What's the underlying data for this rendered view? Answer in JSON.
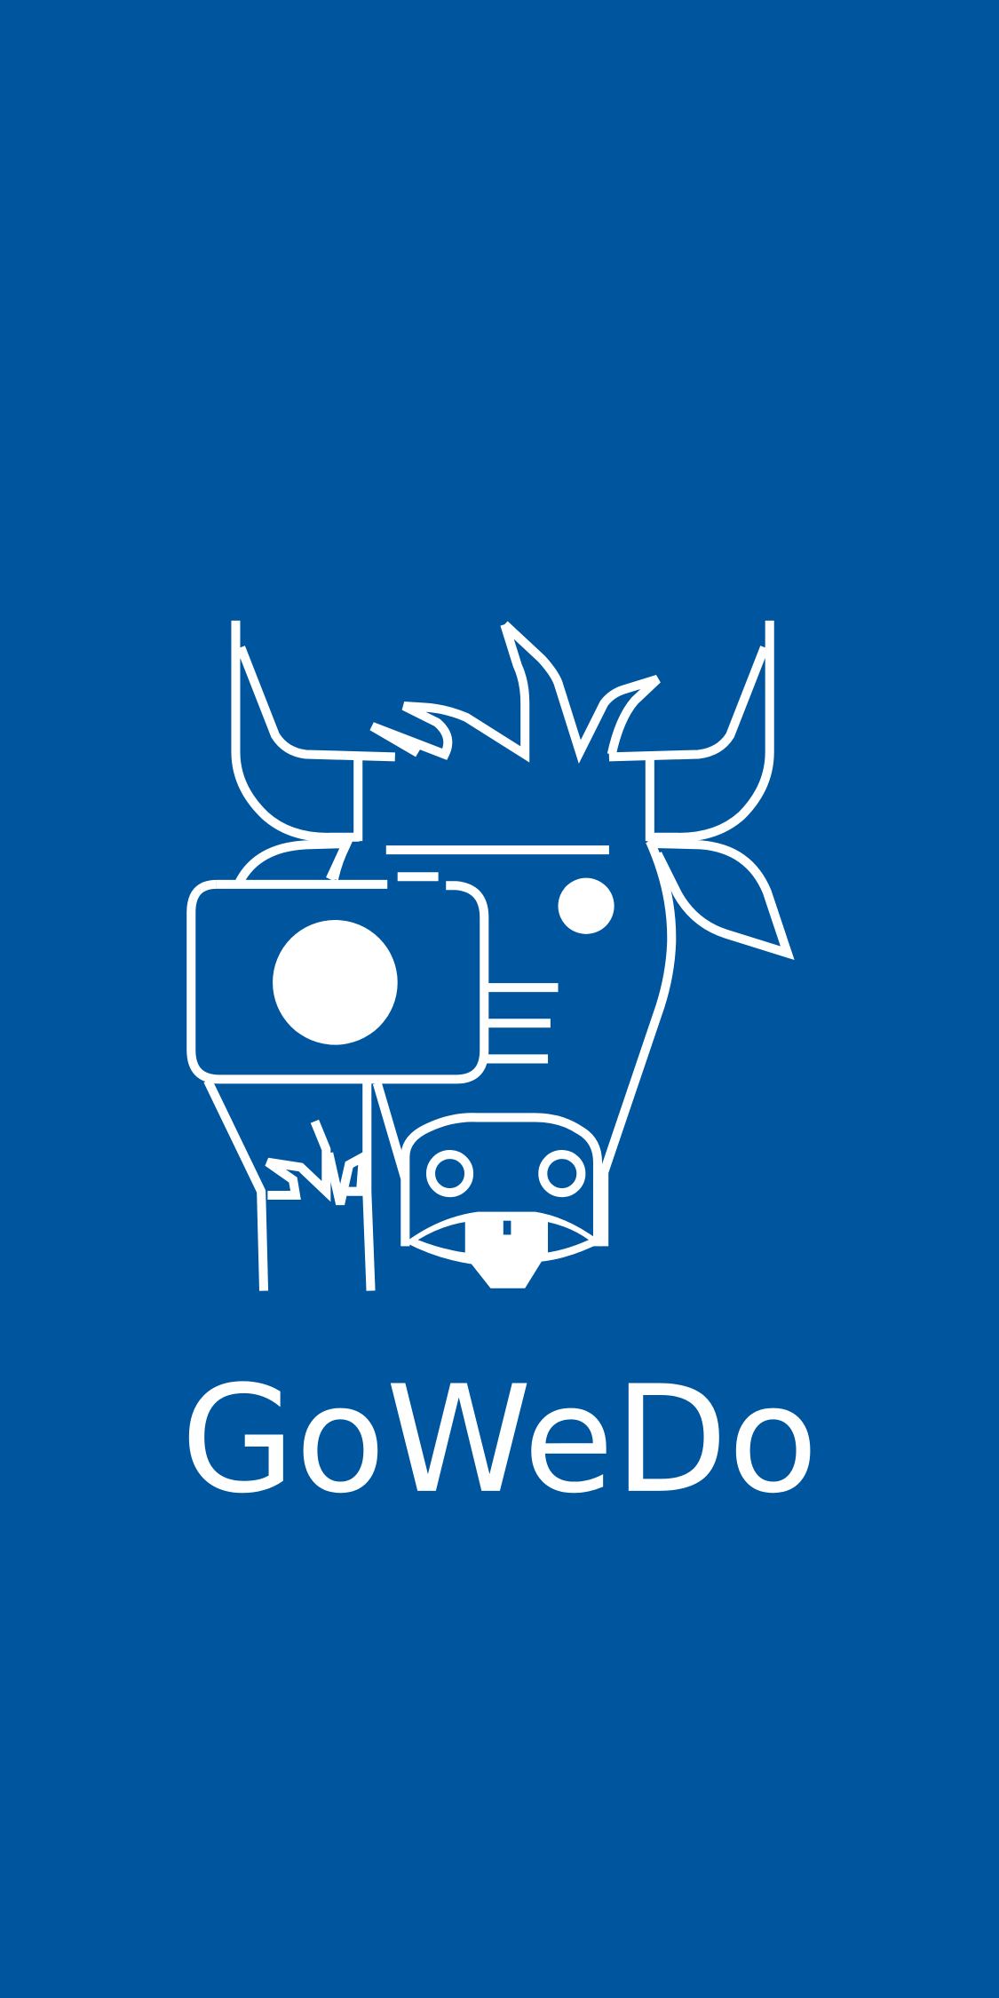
{
  "app": {
    "name": "GoWeDo"
  }
}
